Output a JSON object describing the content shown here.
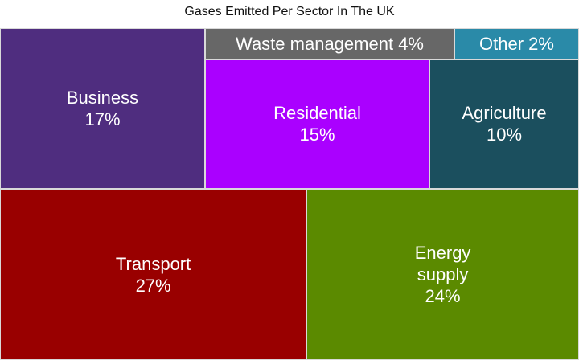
{
  "chart_data": {
    "type": "treemap",
    "title": "Gases Emitted Per Sector In The UK",
    "categories": [
      "Transport",
      "Energy supply",
      "Business",
      "Residential",
      "Agriculture",
      "Waste management",
      "Other"
    ],
    "values": [
      27,
      24,
      17,
      15,
      10,
      4,
      2
    ],
    "value_labels": [
      "27%",
      "24%",
      "17%",
      "15%",
      "10%",
      "4%",
      "2%"
    ],
    "colors": [
      "#990000",
      "#5b8a00",
      "#4f2d7f",
      "#aa00ff",
      "#1b4f5e",
      "#676767",
      "#2a8aa8"
    ]
  }
}
